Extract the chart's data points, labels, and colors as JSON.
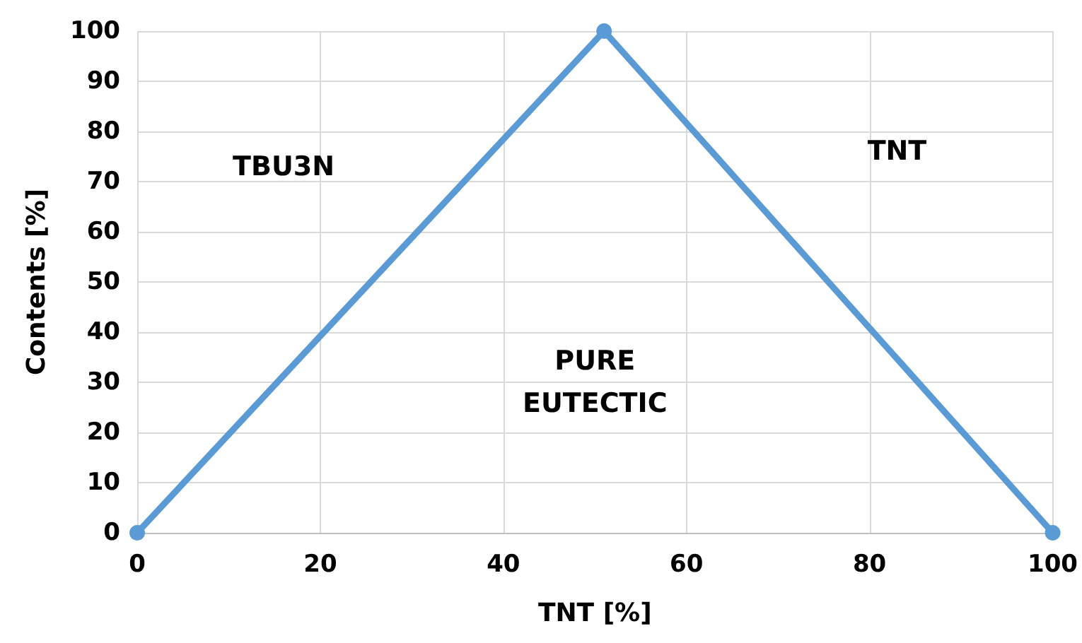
{
  "chart_data": {
    "type": "line",
    "xlabel": "TNT [%]",
    "ylabel": "Contents [%]",
    "x": [
      0,
      51,
      100
    ],
    "series": [
      {
        "color": "#5b9bd5",
        "values": [
          0,
          100,
          0
        ]
      }
    ],
    "xlim": [
      0,
      100
    ],
    "xticks": [
      0,
      20,
      40,
      60,
      80,
      100
    ],
    "ylim": [
      0,
      100
    ],
    "yticks": [
      0,
      10,
      20,
      30,
      40,
      50,
      60,
      70,
      80,
      90,
      100
    ],
    "grid": true,
    "marker": "circle",
    "line_style": "solid",
    "annotations": [
      "TBU3N",
      "TNT",
      "PURE\nEUTECTIC"
    ]
  }
}
